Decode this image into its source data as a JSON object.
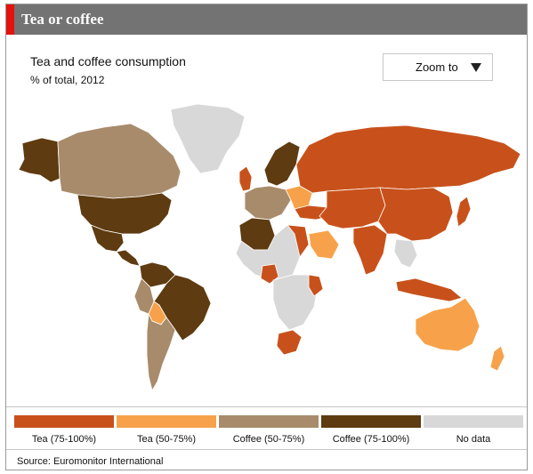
{
  "header": {
    "title": "Tea or coffee"
  },
  "map": {
    "title": "Tea and coffee consumption",
    "subtitle": "% of total, 2012"
  },
  "zoom": {
    "label": "Zoom to",
    "icon": "triangle-down-icon"
  },
  "colors": {
    "tea_high": "#c8511b",
    "tea_mid": "#f7a24a",
    "coffee_mid": "#a88b6b",
    "coffee_high": "#5e3b10",
    "no_data": "#d8d8d8"
  },
  "legend": [
    {
      "label": "Tea (75-100%)",
      "color": "#c8511b"
    },
    {
      "label": "Tea (50-75%)",
      "color": "#f7a24a"
    },
    {
      "label": "Coffee (50-75%)",
      "color": "#a88b6b"
    },
    {
      "label": "Coffee (75-100%)",
      "color": "#5e3b10"
    },
    {
      "label": "No data",
      "color": "#d8d8d8"
    }
  ],
  "regions": {
    "greenland": "no_data",
    "alaska": "coffee_high",
    "canada": "coffee_mid",
    "usa": "coffee_high",
    "mexico": "coffee_high",
    "central_america": "coffee_high",
    "colombia_venezuela": "coffee_high",
    "peru": "coffee_mid",
    "brazil": "coffee_high",
    "bolivia": "tea_mid",
    "argentina_chile": "coffee_mid",
    "uk_ireland": "tea_high",
    "scandinavia": "coffee_high",
    "western_europe": "coffee_mid",
    "eastern_europe": "tea_mid",
    "russia": "tea_high",
    "turkey": "tea_high",
    "north_africa": "coffee_high",
    "sahara": "no_data",
    "egypt": "tea_high",
    "saudi_arabia": "tea_mid",
    "nigeria": "tea_high",
    "central_africa": "no_data",
    "kenya": "tea_high",
    "south_africa": "tea_high",
    "central_asia": "tea_high",
    "india": "tea_high",
    "china": "tea_high",
    "japan": "tea_high",
    "southeast_asia": "no_data",
    "indonesia": "tea_high",
    "australia": "tea_mid",
    "new_zealand": "tea_mid"
  },
  "source": "Source: Euromonitor International"
}
